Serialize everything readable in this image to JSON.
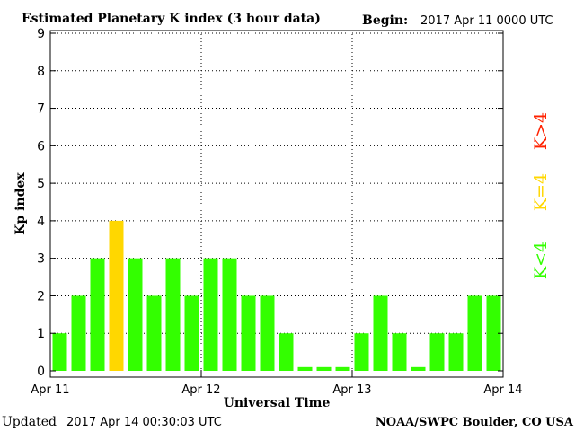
{
  "header": {
    "title": "Estimated Planetary K index (3 hour data)",
    "begin_label": "Begin:",
    "begin_value": "2017 Apr 11 0000 UTC"
  },
  "footer": {
    "updated_label": "Updated",
    "updated_value": "2017 Apr 14 00:30:03 UTC",
    "source": "NOAA/SWPC Boulder, CO USA"
  },
  "legend": {
    "items": [
      {
        "label": "K<4",
        "color": "#33ff00"
      },
      {
        "label": "K=4",
        "color": "#ffd700"
      },
      {
        "label": "K>4",
        "color": "#ff2200"
      }
    ],
    "placement": "right, vertical"
  },
  "chart_data": {
    "type": "bar",
    "xlabel": "Universal Time",
    "ylabel": "Kp index",
    "ylim": [
      0,
      9
    ],
    "yticks": [
      0,
      1,
      2,
      3,
      4,
      5,
      6,
      7,
      8,
      9
    ],
    "xticks": [
      "Apr 11",
      "Apr 12",
      "Apr 13",
      "Apr 14"
    ],
    "grid": "dotted at day boundaries and integer Kp levels",
    "interval_hours": 3,
    "values": [
      1,
      2,
      3,
      4,
      3,
      2,
      3,
      2,
      3,
      3,
      2,
      2,
      1,
      0.1,
      0.1,
      0.1,
      1,
      2,
      1,
      0.1,
      1,
      1,
      2,
      2
    ]
  }
}
